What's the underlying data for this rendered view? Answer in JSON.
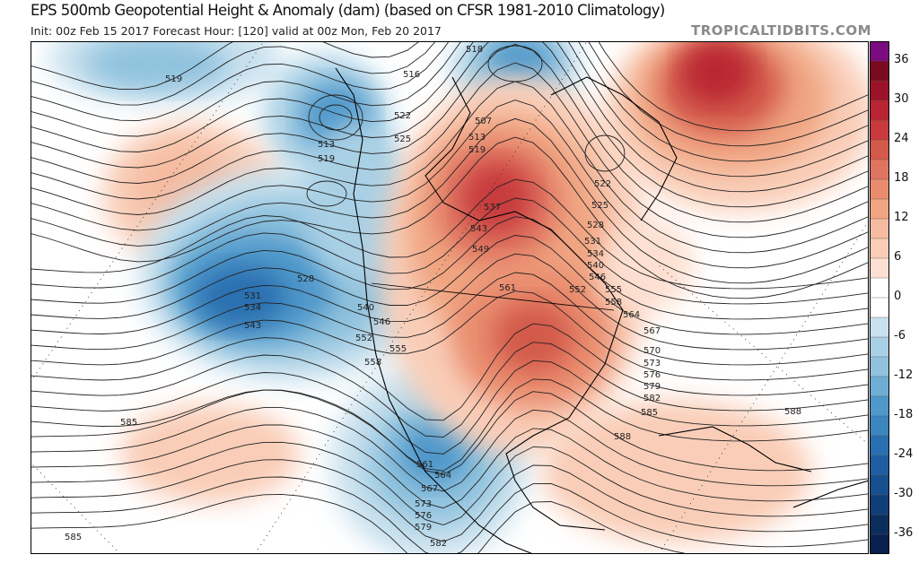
{
  "header": {
    "title": "EPS 500mb Geopotential Height & Anomaly (dam) (based on CFSR 1981-2010 Climatology)",
    "subtitle": "Init: 00z Feb 15 2017   Forecast Hour: [120]   valid at 00z Mon, Feb 20 2017",
    "watermark": "TROPICALTIDBITS.COM"
  },
  "colorbar": {
    "labels": [
      "36",
      "30",
      "24",
      "18",
      "12",
      "6",
      "0",
      "-6",
      "-12",
      "-18",
      "-24",
      "-30",
      "-36"
    ],
    "colors": [
      "#7b0c7f",
      "#7a0a1f",
      "#9c1329",
      "#b92532",
      "#c83a3c",
      "#d35a4b",
      "#df7560",
      "#e98c6e",
      "#f0a582",
      "#f5bba0",
      "#f9cdb7",
      "#fde0d2",
      "#ffffff",
      "#ffffff",
      "#c9e1ee",
      "#a9d0e5",
      "#90c2de",
      "#6eaed5",
      "#4f98ca",
      "#3b86bf",
      "#2a6fb1",
      "#1f5ea3",
      "#17508e",
      "#103f78",
      "#0b2e5c",
      "#08204e"
    ]
  },
  "map": {
    "contour_labels": [
      "519",
      "516",
      "518",
      "513",
      "519",
      "522",
      "525",
      "507",
      "513",
      "519",
      "537",
      "543",
      "549",
      "561",
      "522",
      "525",
      "528",
      "531",
      "534",
      "540",
      "546",
      "552",
      "555",
      "558",
      "564",
      "567",
      "570",
      "573",
      "576",
      "579",
      "582",
      "585",
      "588",
      "528",
      "531",
      "534",
      "543",
      "540",
      "546",
      "552",
      "555",
      "558",
      "561",
      "564",
      "567",
      "573",
      "576",
      "579",
      "582",
      "585",
      "585",
      "588"
    ]
  }
}
